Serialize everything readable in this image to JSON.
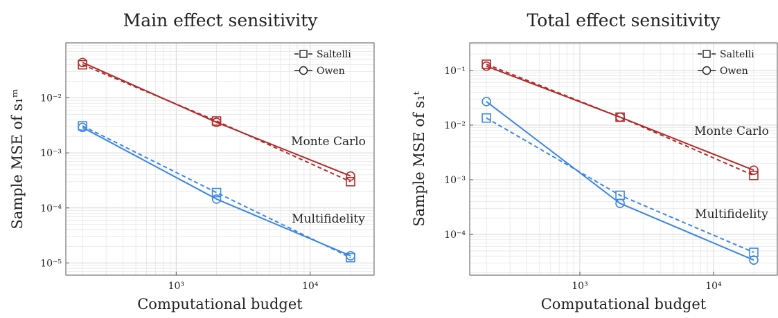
{
  "colors": {
    "monte_carlo": "#b22b2b",
    "multifidelity": "#3b86e8"
  },
  "legend": {
    "saltelli": "Saltelli",
    "owen": "Owen"
  },
  "annotations": {
    "monte_carlo": "Monte Carlo",
    "multifidelity": "Multifidelity"
  },
  "chart_data": [
    {
      "type": "line",
      "title": "Main effect sensitivity",
      "xlabel": "Computational budget",
      "ylabel": "Sample MSE of s₁ᵐ",
      "xscale": "log",
      "yscale": "log",
      "xlim": [
        150,
        30000
      ],
      "ylim": [
        6e-06,
        0.1
      ],
      "x_ticks": [
        "10³",
        "10⁴"
      ],
      "y_ticks": [
        "10⁻⁵",
        "10⁻⁴",
        "10⁻³",
        "10⁻²"
      ],
      "grid": true,
      "legend_position": "top-right",
      "x": [
        200,
        2000,
        20000
      ],
      "series": [
        {
          "name": "Saltelli",
          "group": "Monte Carlo",
          "style": "dashed",
          "marker": "square",
          "values": [
            0.04,
            0.0038,
            0.0003
          ]
        },
        {
          "name": "Owen",
          "group": "Monte Carlo",
          "style": "solid",
          "marker": "circle",
          "values": [
            0.044,
            0.0036,
            0.00038
          ]
        },
        {
          "name": "Saltelli",
          "group": "Multifidelity",
          "style": "dashed",
          "marker": "square",
          "values": [
            0.0031,
            0.00019,
            1.25e-05
          ]
        },
        {
          "name": "Owen",
          "group": "Multifidelity",
          "style": "solid",
          "marker": "circle",
          "values": [
            0.0029,
            0.000145,
            1.35e-05
          ]
        }
      ]
    },
    {
      "type": "line",
      "title": "Total effect sensitivity",
      "xlabel": "Computational budget",
      "ylabel": "Sample MSE of s₁ᵗ",
      "xscale": "log",
      "yscale": "log",
      "xlim": [
        150,
        30000
      ],
      "ylim": [
        1.8e-05,
        0.32
      ],
      "x_ticks": [
        "10³",
        "10⁴"
      ],
      "y_ticks": [
        "10⁻⁴",
        "10⁻³",
        "10⁻²",
        "10⁻¹"
      ],
      "grid": true,
      "legend_position": "top-right",
      "x": [
        200,
        2000,
        20000
      ],
      "series": [
        {
          "name": "Saltelli",
          "group": "Monte Carlo",
          "style": "dashed",
          "marker": "square",
          "values": [
            0.13,
            0.014,
            0.0012
          ]
        },
        {
          "name": "Owen",
          "group": "Monte Carlo",
          "style": "solid",
          "marker": "circle",
          "values": [
            0.12,
            0.014,
            0.0015
          ]
        },
        {
          "name": "Saltelli",
          "group": "Multifidelity",
          "style": "dashed",
          "marker": "square",
          "values": [
            0.0135,
            0.00052,
            4.7e-05
          ]
        },
        {
          "name": "Owen",
          "group": "Multifidelity",
          "style": "solid",
          "marker": "circle",
          "values": [
            0.027,
            0.00037,
            3.4e-05
          ]
        }
      ]
    }
  ]
}
